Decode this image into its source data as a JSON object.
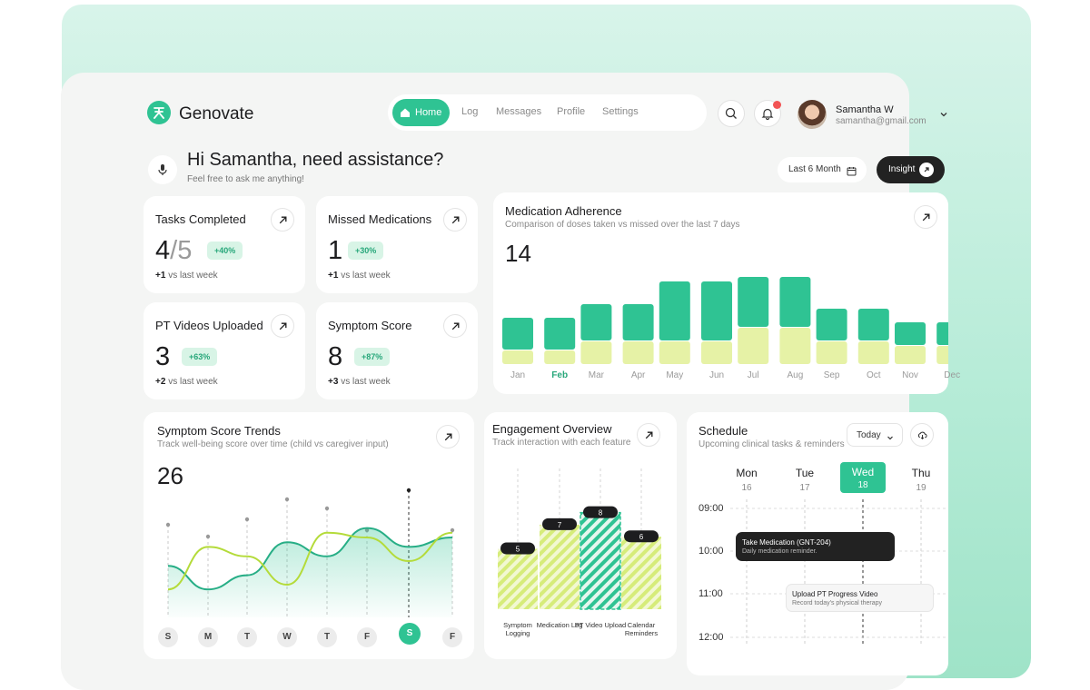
{
  "app": {
    "name": "Genovate"
  },
  "nav": {
    "items": [
      "Home",
      "Log",
      "Messages",
      "Profile",
      "Settings"
    ],
    "active": "Home"
  },
  "user": {
    "name": "Samantha W",
    "email": "samantha@gmail.com"
  },
  "greeting": {
    "title": "Hi Samantha, need assistance?",
    "subtitle": "Feel free to ask me anything!"
  },
  "toolbar": {
    "range_label": "Last 6 Month",
    "insight_label": "Insight"
  },
  "stats": [
    {
      "title": "Tasks Completed",
      "value": "4",
      "value_suffix": "/5",
      "badge": "+40%",
      "delta": "+1",
      "delta_text": "vs last week"
    },
    {
      "title": "Missed Medications",
      "value": "1",
      "value_suffix": "",
      "badge": "+30%",
      "delta": "+1",
      "delta_text": "vs last week"
    },
    {
      "title": "PT Videos Uploaded",
      "value": "3",
      "value_suffix": "",
      "badge": "+63%",
      "delta": "+2",
      "delta_text": "vs last week"
    },
    {
      "title": "Symptom Score",
      "value": "8",
      "value_suffix": "",
      "badge": "+87%",
      "delta": "+3",
      "delta_text": "vs last week"
    }
  ],
  "adherence": {
    "title": "Medication Adherence",
    "subtitle": "Comparison of doses taken vs missed over the last 7 days",
    "value": "14",
    "highlight_month": "Feb"
  },
  "trends": {
    "title": "Symptom Score Trends",
    "subtitle": "Track well-being score over time (child vs caregiver input)",
    "value": "26",
    "days": [
      "S",
      "M",
      "T",
      "W",
      "T",
      "F",
      "S",
      "F"
    ],
    "active_day_index": 6
  },
  "engagement": {
    "title": "Engagement Overview",
    "subtitle": "Track interaction with each feature"
  },
  "schedule": {
    "title": "Schedule",
    "subtitle": "Upcoming clinical tasks & reminders",
    "filter_label": "Today",
    "days": [
      {
        "name": "Mon",
        "date": "16"
      },
      {
        "name": "Tue",
        "date": "17"
      },
      {
        "name": "Wed",
        "date": "18"
      },
      {
        "name": "Thu",
        "date": "19"
      }
    ],
    "active_day_index": 2,
    "times": [
      "09:00",
      "10:00",
      "11:00",
      "12:00"
    ],
    "events": [
      {
        "title": "Take Medication (GNT-204)",
        "subtitle": "Daily medication reminder."
      },
      {
        "title": "Upload PT Progress Video",
        "subtitle": "Record today's physical therapy"
      }
    ]
  },
  "chart_data": [
    {
      "type": "bar",
      "title": "Medication Adherence",
      "categories": [
        "Jan",
        "Feb",
        "Mar",
        "Apr",
        "May",
        "Jun",
        "Jul",
        "Aug",
        "Sep",
        "Oct",
        "Nov",
        "Dec"
      ],
      "series": [
        {
          "values": [
            3.5,
            3.5,
            4,
            4,
            6.5,
            6.5,
            5.5,
            5.5,
            3.5,
            3.5,
            2.5,
            2.5
          ]
        },
        {
          "values": [
            1.5,
            1.5,
            2.5,
            2.5,
            2.5,
            2.5,
            4,
            4,
            2.5,
            2.5,
            2,
            2
          ]
        }
      ],
      "colors": [
        "#2fc393",
        "#e6f2a6"
      ]
    },
    {
      "type": "line",
      "title": "Symptom Score Trends",
      "categories": [
        "S",
        "M",
        "T",
        "W",
        "T",
        "F",
        "S",
        "F"
      ],
      "series": [
        {
          "values": [
            19,
            14,
            17,
            24,
            21,
            27,
            23,
            25
          ]
        },
        {
          "values": [
            14,
            23,
            21,
            15,
            26,
            25,
            20,
            26
          ]
        }
      ],
      "colors": [
        "#27ae86",
        "#b4db3a"
      ]
    },
    {
      "type": "bar",
      "title": "Engagement Overview",
      "categories": [
        "Symptom Logging",
        "Medication Log",
        "PT Video Upload",
        "Calendar Reminders"
      ],
      "values": [
        5,
        7,
        8,
        6
      ],
      "colors": [
        "#d6ec7a",
        "#2fc393"
      ]
    }
  ]
}
